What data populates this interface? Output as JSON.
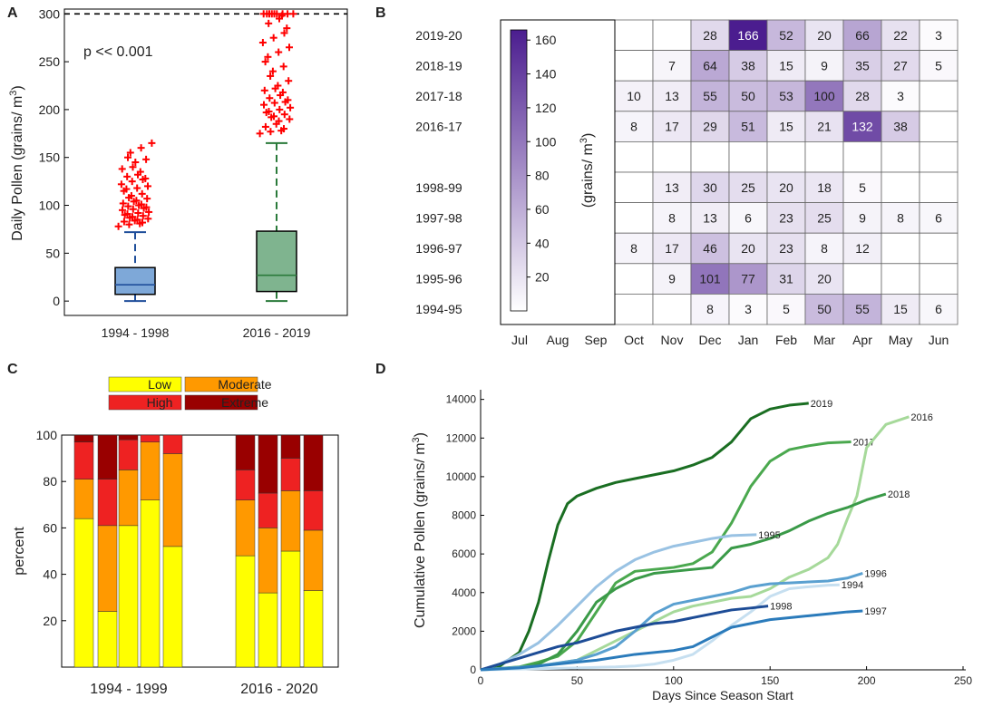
{
  "panels": {
    "a": "A",
    "b": "B",
    "c": "C",
    "d": "D"
  },
  "chart_data": [
    {
      "id": "A",
      "type": "boxplot",
      "ylabel": "Daily Pollen (grains/ m",
      "ylabel_sup": "3",
      "ylabel_close": ")",
      "ylim": [
        -15,
        305
      ],
      "yticks": [
        0,
        50,
        100,
        150,
        200,
        250,
        300
      ],
      "cap_line": 300,
      "annotation": "p << 0.001",
      "groups": [
        {
          "name": "1994 - 1998",
          "color": "#7ea8d8",
          "line": "#1f4e9a",
          "whisker_low": 0,
          "q1": 7,
          "median": 17,
          "q3": 35,
          "whisker_high": 72,
          "outliers": [
            78,
            80,
            81,
            82,
            83,
            84,
            85,
            86,
            87,
            88,
            89,
            90,
            91,
            92,
            93,
            95,
            96,
            97,
            98,
            99,
            100,
            101,
            102,
            104,
            105,
            107,
            108,
            110,
            112,
            115,
            117,
            118,
            120,
            122,
            125,
            127,
            128,
            130,
            132,
            135,
            138,
            140,
            145,
            148,
            150,
            155,
            160,
            165
          ]
        },
        {
          "name": "2016 - 2019",
          "color": "#7fb48f",
          "line": "#2a7a3a",
          "whisker_low": 0,
          "q1": 10,
          "median": 27,
          "q3": 73,
          "whisker_high": 165,
          "outliers": [
            175,
            177,
            178,
            180,
            182,
            185,
            188,
            190,
            192,
            193,
            195,
            197,
            198,
            200,
            202,
            205,
            207,
            208,
            210,
            212,
            215,
            218,
            220,
            222,
            225,
            230,
            235,
            240,
            245,
            250,
            255,
            260,
            265,
            270,
            275,
            280,
            285,
            290,
            295,
            298,
            300,
            300,
            300,
            300,
            300,
            300,
            300,
            300,
            300
          ]
        }
      ]
    },
    {
      "id": "B",
      "type": "heatmap",
      "months": [
        "Jul",
        "Aug",
        "Sep",
        "Oct",
        "Nov",
        "Dec",
        "Jan",
        "Feb",
        "Mar",
        "Apr",
        "May",
        "Jun"
      ],
      "rows": [
        {
          "label": "2019-20",
          "values": [
            null,
            null,
            null,
            null,
            null,
            28,
            166,
            52,
            20,
            66,
            22,
            3
          ]
        },
        {
          "label": "2018-19",
          "values": [
            null,
            null,
            null,
            null,
            7,
            64,
            38,
            15,
            9,
            35,
            27,
            5
          ]
        },
        {
          "label": "2017-18",
          "values": [
            null,
            null,
            null,
            10,
            13,
            55,
            50,
            53,
            100,
            28,
            3,
            null
          ]
        },
        {
          "label": "2016-17",
          "values": [
            null,
            null,
            null,
            8,
            17,
            29,
            51,
            15,
            21,
            132,
            38,
            null
          ]
        },
        {
          "label": "",
          "values": [
            null,
            null,
            null,
            null,
            null,
            null,
            null,
            null,
            null,
            null,
            null,
            null
          ]
        },
        {
          "label": "1998-99",
          "values": [
            null,
            null,
            null,
            null,
            13,
            30,
            25,
            20,
            18,
            5,
            null,
            null
          ]
        },
        {
          "label": "1997-98",
          "values": [
            null,
            null,
            null,
            null,
            8,
            13,
            6,
            23,
            25,
            9,
            8,
            6
          ]
        },
        {
          "label": "1996-97",
          "values": [
            null,
            null,
            null,
            8,
            17,
            46,
            20,
            23,
            8,
            12,
            null,
            null
          ]
        },
        {
          "label": "1995-96",
          "values": [
            null,
            null,
            null,
            null,
            9,
            101,
            77,
            31,
            20,
            null,
            null,
            null
          ]
        },
        {
          "label": "1994-95",
          "values": [
            null,
            null,
            null,
            null,
            null,
            8,
            3,
            5,
            50,
            55,
            15,
            6
          ]
        }
      ],
      "colorbar": {
        "label": "(grains/ m",
        "label_sup": "3",
        "label_close": ")",
        "min": 0,
        "max": 166,
        "ticks": [
          20,
          40,
          60,
          80,
          100,
          120,
          140,
          160
        ],
        "color_low": "#ffffff",
        "color_high": "#4b1d8f"
      }
    },
    {
      "id": "C",
      "type": "stacked_bar",
      "ylabel": "percent",
      "ylim": [
        0,
        100
      ],
      "yticks": [
        20,
        40,
        60,
        80,
        100
      ],
      "group_labels": [
        "1994 - 1999",
        "2016 - 2020"
      ],
      "legend": [
        {
          "name": "Low",
          "color": "#ffff00"
        },
        {
          "name": "Moderate",
          "color": "#ff9900"
        },
        {
          "name": "High",
          "color": "#ee2222"
        },
        {
          "name": "Extreme",
          "color": "#990000"
        }
      ],
      "bars": [
        {
          "group": 0,
          "values": [
            64,
            17,
            16,
            3
          ]
        },
        {
          "group": 0,
          "values": [
            24,
            37,
            20,
            19
          ]
        },
        {
          "group": 0,
          "values": [
            61,
            24,
            13,
            2
          ]
        },
        {
          "group": 0,
          "values": [
            72,
            25,
            3,
            0
          ]
        },
        {
          "group": 0,
          "values": [
            52,
            40,
            8,
            0
          ]
        },
        {
          "group": 1,
          "values": [
            48,
            24,
            13,
            15
          ]
        },
        {
          "group": 1,
          "values": [
            32,
            28,
            15,
            25
          ]
        },
        {
          "group": 1,
          "values": [
            50,
            26,
            14,
            10
          ]
        },
        {
          "group": 1,
          "values": [
            33,
            26,
            17,
            24
          ]
        }
      ]
    },
    {
      "id": "D",
      "type": "line",
      "xlabel": "Days Since Season Start",
      "ylabel": "Cumulative Pollen (grains/ m",
      "ylabel_sup": "3",
      "ylabel_close": ")",
      "xlim": [
        0,
        250
      ],
      "ylim": [
        0,
        14500
      ],
      "xticks": [
        0,
        50,
        100,
        150,
        200,
        250
      ],
      "yticks": [
        0,
        2000,
        4000,
        6000,
        8000,
        10000,
        12000,
        14000
      ],
      "series": [
        {
          "name": "2019",
          "color": "#1a6e22",
          "x": [
            0,
            10,
            20,
            25,
            30,
            35,
            40,
            45,
            50,
            60,
            70,
            80,
            90,
            100,
            110,
            120,
            130,
            140,
            150,
            160,
            170
          ],
          "y": [
            0,
            200,
            900,
            2000,
            3500,
            5600,
            7500,
            8600,
            9000,
            9400,
            9700,
            9900,
            10100,
            10300,
            10600,
            11000,
            11800,
            13000,
            13500,
            13700,
            13800
          ]
        },
        {
          "name": "2017",
          "color": "#4aa84e",
          "x": [
            0,
            20,
            30,
            40,
            50,
            60,
            70,
            80,
            90,
            100,
            110,
            120,
            130,
            140,
            150,
            160,
            170,
            180,
            192
          ],
          "y": [
            0,
            150,
            400,
            700,
            1500,
            3000,
            4500,
            5100,
            5200,
            5300,
            5500,
            6100,
            7600,
            9500,
            10800,
            11400,
            11600,
            11750,
            11800
          ]
        },
        {
          "name": "2016",
          "color": "#a6d99a",
          "x": [
            0,
            30,
            50,
            70,
            90,
            100,
            110,
            120,
            130,
            140,
            150,
            160,
            170,
            180,
            185,
            190,
            195,
            200,
            210,
            222
          ],
          "y": [
            0,
            200,
            500,
            1500,
            2500,
            3000,
            3300,
            3500,
            3700,
            3800,
            4200,
            4800,
            5200,
            5800,
            6500,
            7800,
            9000,
            11500,
            12700,
            13100
          ]
        },
        {
          "name": "2018",
          "color": "#3a9a48",
          "x": [
            0,
            20,
            30,
            40,
            50,
            60,
            70,
            80,
            90,
            100,
            110,
            120,
            130,
            140,
            150,
            160,
            170,
            180,
            190,
            200,
            210
          ],
          "y": [
            0,
            100,
            300,
            800,
            2000,
            3500,
            4200,
            4700,
            5000,
            5100,
            5200,
            5300,
            6300,
            6500,
            6800,
            7200,
            7700,
            8100,
            8400,
            8800,
            9100
          ]
        },
        {
          "name": "1995",
          "color": "#99c2e3",
          "x": [
            0,
            10,
            20,
            30,
            40,
            50,
            60,
            70,
            80,
            90,
            100,
            110,
            120,
            130,
            143
          ],
          "y": [
            0,
            300,
            800,
            1400,
            2300,
            3300,
            4300,
            5100,
            5700,
            6100,
            6400,
            6600,
            6800,
            6950,
            7000
          ]
        },
        {
          "name": "1996",
          "color": "#5aa0d0",
          "x": [
            0,
            30,
            50,
            60,
            70,
            80,
            90,
            100,
            110,
            120,
            130,
            140,
            150,
            160,
            170,
            180,
            190,
            198
          ],
          "y": [
            0,
            200,
            500,
            800,
            1200,
            2000,
            2900,
            3400,
            3600,
            3800,
            4000,
            4300,
            4450,
            4500,
            4550,
            4600,
            4750,
            5000
          ]
        },
        {
          "name": "1994",
          "color": "#c6dff0",
          "x": [
            0,
            50,
            70,
            80,
            90,
            100,
            110,
            120,
            130,
            140,
            150,
            160,
            170,
            180,
            186
          ],
          "y": [
            0,
            100,
            150,
            200,
            300,
            500,
            800,
            1500,
            2300,
            3000,
            3800,
            4200,
            4300,
            4380,
            4400
          ]
        },
        {
          "name": "1998",
          "color": "#1d4c96",
          "x": [
            0,
            10,
            20,
            30,
            40,
            50,
            60,
            70,
            80,
            90,
            100,
            110,
            120,
            130,
            140,
            149
          ],
          "y": [
            0,
            300,
            600,
            900,
            1200,
            1400,
            1700,
            2000,
            2200,
            2400,
            2500,
            2700,
            2900,
            3100,
            3200,
            3300
          ]
        },
        {
          "name": "1997",
          "color": "#2b7bbb",
          "x": [
            0,
            20,
            40,
            60,
            80,
            100,
            110,
            120,
            130,
            140,
            150,
            160,
            170,
            180,
            190,
            198
          ],
          "y": [
            0,
            100,
            300,
            500,
            800,
            1000,
            1200,
            1700,
            2200,
            2400,
            2600,
            2700,
            2800,
            2900,
            3000,
            3050
          ]
        }
      ]
    }
  ]
}
